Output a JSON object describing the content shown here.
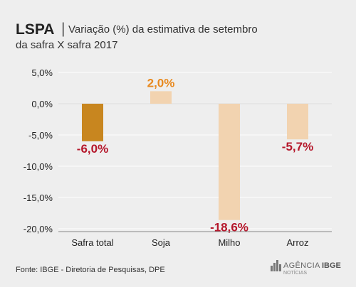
{
  "header": {
    "title_bold": "LSPA",
    "title_separator": "|",
    "title_line1": "Variação (%) da estimativa de setembro",
    "title_line2": "da safra X safra 2017"
  },
  "chart_data": {
    "type": "bar",
    "categories": [
      "Safra total",
      "Soja",
      "Milho",
      "Arroz"
    ],
    "values": [
      -6.0,
      2.0,
      -18.6,
      -5.7
    ],
    "value_labels": [
      "-6,0%",
      "2,0%",
      "-18,6%",
      "-5,7%"
    ],
    "ylim": [
      -20,
      5
    ],
    "yticks": [
      5,
      0,
      -5,
      -10,
      -15,
      -20
    ],
    "ytick_labels": [
      "5,0%",
      "0,0%",
      "-5,0%",
      "-10,0%",
      "-15,0%",
      "-20,0%"
    ],
    "grid": true,
    "legend": "none",
    "colors": {
      "highlight_bar": "#c8861f",
      "bar": "#f2d3b0",
      "positive_label": "#e8891e",
      "negative_label": "#b5172b",
      "grid": "#ffffff",
      "axis": "#888888"
    }
  },
  "footer": {
    "source": "Fonte: IBGE - Diretoria de Pesquisas, DPE",
    "logo_text_light": "AGÊNCIA",
    "logo_text_bold": "IBGE",
    "logo_subtext": "NOTÍCIAS"
  }
}
